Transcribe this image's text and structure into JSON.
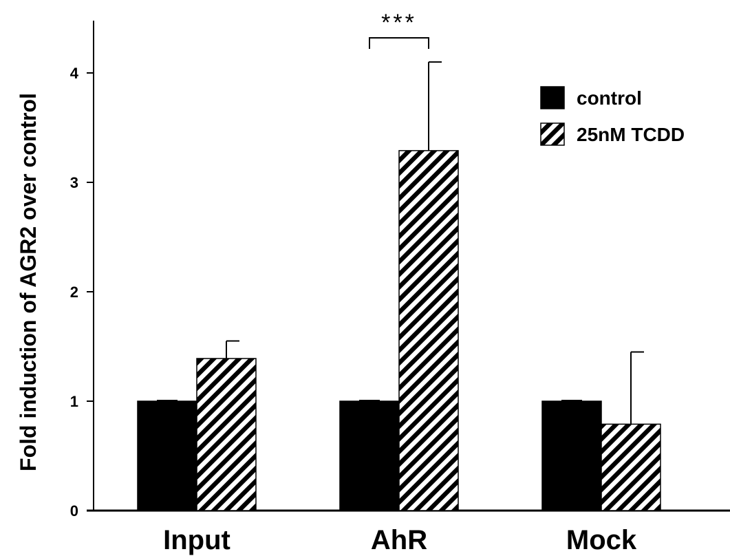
{
  "chart_data": {
    "type": "bar",
    "categories": [
      "Input",
      "AhR",
      "Mock"
    ],
    "series": [
      {
        "name": "control",
        "values": [
          1.0,
          1.0,
          1.0
        ],
        "errors": [
          0.0,
          0.0,
          0.0
        ],
        "pattern": "solid",
        "color": "#000000"
      },
      {
        "name": "25nM TCDD",
        "values": [
          1.39,
          3.29,
          0.79
        ],
        "errors": [
          0.16,
          0.81,
          0.66
        ],
        "pattern": "diagonal-stripes",
        "color": "#000000"
      }
    ],
    "ylabel": "Fold induction of AGR2 over control",
    "xlabel": "",
    "ylim": [
      0,
      4.5
    ],
    "yticks": [
      0,
      1,
      2,
      3,
      4
    ],
    "legend_position": "top-right",
    "grid": false,
    "annotations": [
      {
        "text": "***",
        "category": "AhR",
        "type": "significance-bracket"
      }
    ]
  }
}
